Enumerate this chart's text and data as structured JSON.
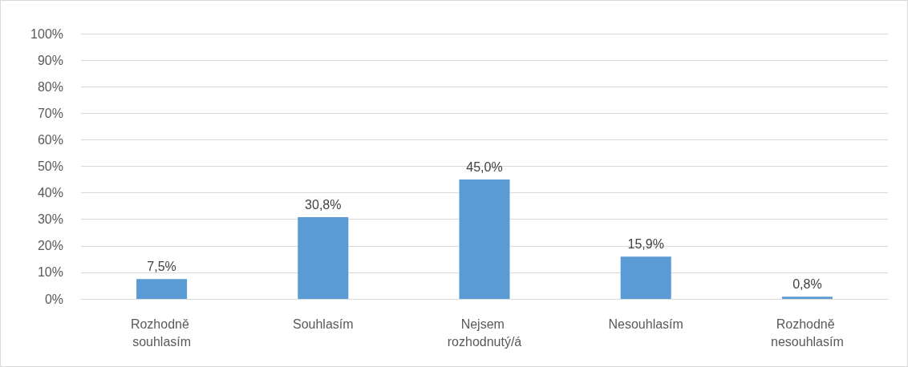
{
  "chart_data": {
    "type": "bar",
    "categories": [
      "Rozhodně souhlasím",
      "Souhlasím",
      "Nejsem rozhodnutý/á",
      "Nesouhlasím",
      "Rozhodně nesouhlasím"
    ],
    "values": [
      7.5,
      30.8,
      45.0,
      15.9,
      0.8
    ],
    "value_labels": [
      "7,5%",
      "30,8%",
      "45,0%",
      "15,9%",
      "0,8%"
    ],
    "color": "#5b9bd5",
    "ylim": [
      0,
      100
    ],
    "yticks": [
      {
        "value": 0,
        "label": "0%"
      },
      {
        "value": 10,
        "label": "10%"
      },
      {
        "value": 20,
        "label": "20%"
      },
      {
        "value": 30,
        "label": "30%"
      },
      {
        "value": 40,
        "label": "40%"
      },
      {
        "value": 50,
        "label": "50%"
      },
      {
        "value": 60,
        "label": "60%"
      },
      {
        "value": 70,
        "label": "70%"
      },
      {
        "value": 80,
        "label": "80%"
      },
      {
        "value": 90,
        "label": "90%"
      },
      {
        "value": 100,
        "label": "100%"
      }
    ],
    "grid": "y"
  }
}
